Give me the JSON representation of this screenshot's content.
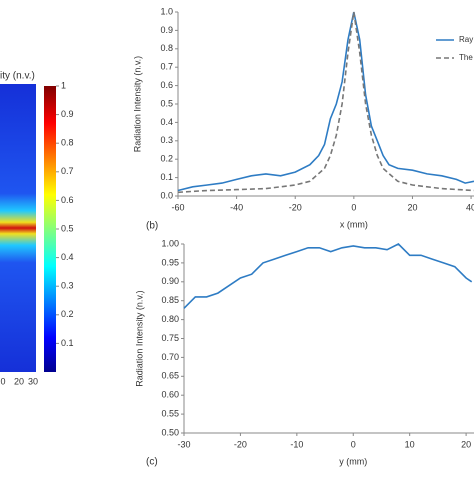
{
  "chart_data": [
    {
      "type": "heatmap",
      "colorbar_label": "ity (n.v.)",
      "colorbar_ticks": [
        0.1,
        0.2,
        0.3,
        0.4,
        0.5,
        0.6,
        0.7,
        0.8,
        0.9,
        1
      ],
      "clim": [
        0,
        1
      ],
      "xtick_labels": [
        "0",
        "20",
        "30"
      ]
    },
    {
      "type": "line",
      "panel_label": "(b)",
      "x_label": "x (mm)",
      "y_label": "Radiation Intensity (n.v.)",
      "xlim": [
        -60,
        41
      ],
      "xticks": [
        -60,
        -40,
        -20,
        0,
        20,
        40
      ],
      "ylim": [
        0,
        1
      ],
      "yticks": [
        {
          "value": 0,
          "label": "0.0"
        },
        {
          "value": 0.1,
          "label": "0.1"
        },
        {
          "value": 0.2,
          "label": "0.2"
        },
        {
          "value": 0.3,
          "label": "0.3"
        },
        {
          "value": 0.4,
          "label": "0.4"
        },
        {
          "value": 0.5,
          "label": "0.5"
        },
        {
          "value": 0.6,
          "label": "0.6"
        },
        {
          "value": 0.7,
          "label": "0.7"
        },
        {
          "value": 0.8,
          "label": "0.8"
        },
        {
          "value": 0.9,
          "label": "0.9"
        },
        {
          "value": 1,
          "label": "1.0"
        }
      ],
      "series": [
        {
          "name": "Ray",
          "color": "#2e7cc4",
          "dashed": false,
          "x": [
            -60,
            -55,
            -50,
            -45,
            -40,
            -35,
            -30,
            -25,
            -20,
            -15,
            -12,
            -10,
            -8,
            -6,
            -4,
            -2,
            0,
            2,
            4,
            6,
            8,
            10,
            12,
            15,
            20,
            25,
            30,
            35,
            38,
            41
          ],
          "values": [
            0.03,
            0.05,
            0.06,
            0.07,
            0.09,
            0.11,
            0.12,
            0.11,
            0.13,
            0.17,
            0.22,
            0.28,
            0.42,
            0.5,
            0.62,
            0.85,
            1.0,
            0.85,
            0.55,
            0.38,
            0.3,
            0.22,
            0.17,
            0.15,
            0.14,
            0.12,
            0.11,
            0.09,
            0.07,
            0.08
          ]
        },
        {
          "name": "The",
          "color": "#777777",
          "dashed": true,
          "x": [
            -60,
            -50,
            -40,
            -30,
            -20,
            -15,
            -10,
            -8,
            -6,
            -4,
            -2,
            0,
            2,
            4,
            6,
            8,
            10,
            15,
            20,
            30,
            41
          ],
          "values": [
            0.02,
            0.03,
            0.035,
            0.04,
            0.06,
            0.08,
            0.15,
            0.22,
            0.33,
            0.5,
            0.78,
            1.0,
            0.78,
            0.5,
            0.33,
            0.22,
            0.15,
            0.08,
            0.06,
            0.04,
            0.03
          ]
        }
      ]
    },
    {
      "type": "line",
      "panel_label": "(c)",
      "x_label": "y (mm)",
      "y_label": "Radiation Intensity (n.v.)",
      "xlim": [
        -30,
        21.4
      ],
      "xticks": [
        -30,
        -20,
        -10,
        0,
        10,
        20
      ],
      "ylim": [
        0.5,
        1.0
      ],
      "yticks": [
        {
          "value": 0.5,
          "label": "0.50"
        },
        {
          "value": 0.55,
          "label": "0.55"
        },
        {
          "value": 0.6,
          "label": "0.60"
        },
        {
          "value": 0.65,
          "label": "0.65"
        },
        {
          "value": 0.7,
          "label": "0.70"
        },
        {
          "value": 0.75,
          "label": "0.75"
        },
        {
          "value": 0.8,
          "label": "0.80"
        },
        {
          "value": 0.85,
          "label": "0.85"
        },
        {
          "value": 0.9,
          "label": "0.90"
        },
        {
          "value": 0.95,
          "label": "0.95"
        },
        {
          "value": 1.0,
          "label": "1.00"
        }
      ],
      "series": [
        {
          "color": "#2e7cc4",
          "dashed": false,
          "x": [
            -30,
            -28,
            -26,
            -24,
            -22,
            -20,
            -18,
            -16,
            -14,
            -12,
            -10,
            -8,
            -6,
            -4,
            -2,
            0,
            2,
            4,
            6,
            8,
            10,
            12,
            14,
            16,
            18,
            20,
            21
          ],
          "values": [
            0.83,
            0.86,
            0.86,
            0.87,
            0.89,
            0.91,
            0.92,
            0.95,
            0.96,
            0.97,
            0.98,
            0.99,
            0.99,
            0.98,
            0.99,
            0.995,
            0.99,
            0.99,
            0.985,
            1.0,
            0.97,
            0.97,
            0.96,
            0.95,
            0.94,
            0.91,
            0.9
          ]
        }
      ]
    }
  ]
}
